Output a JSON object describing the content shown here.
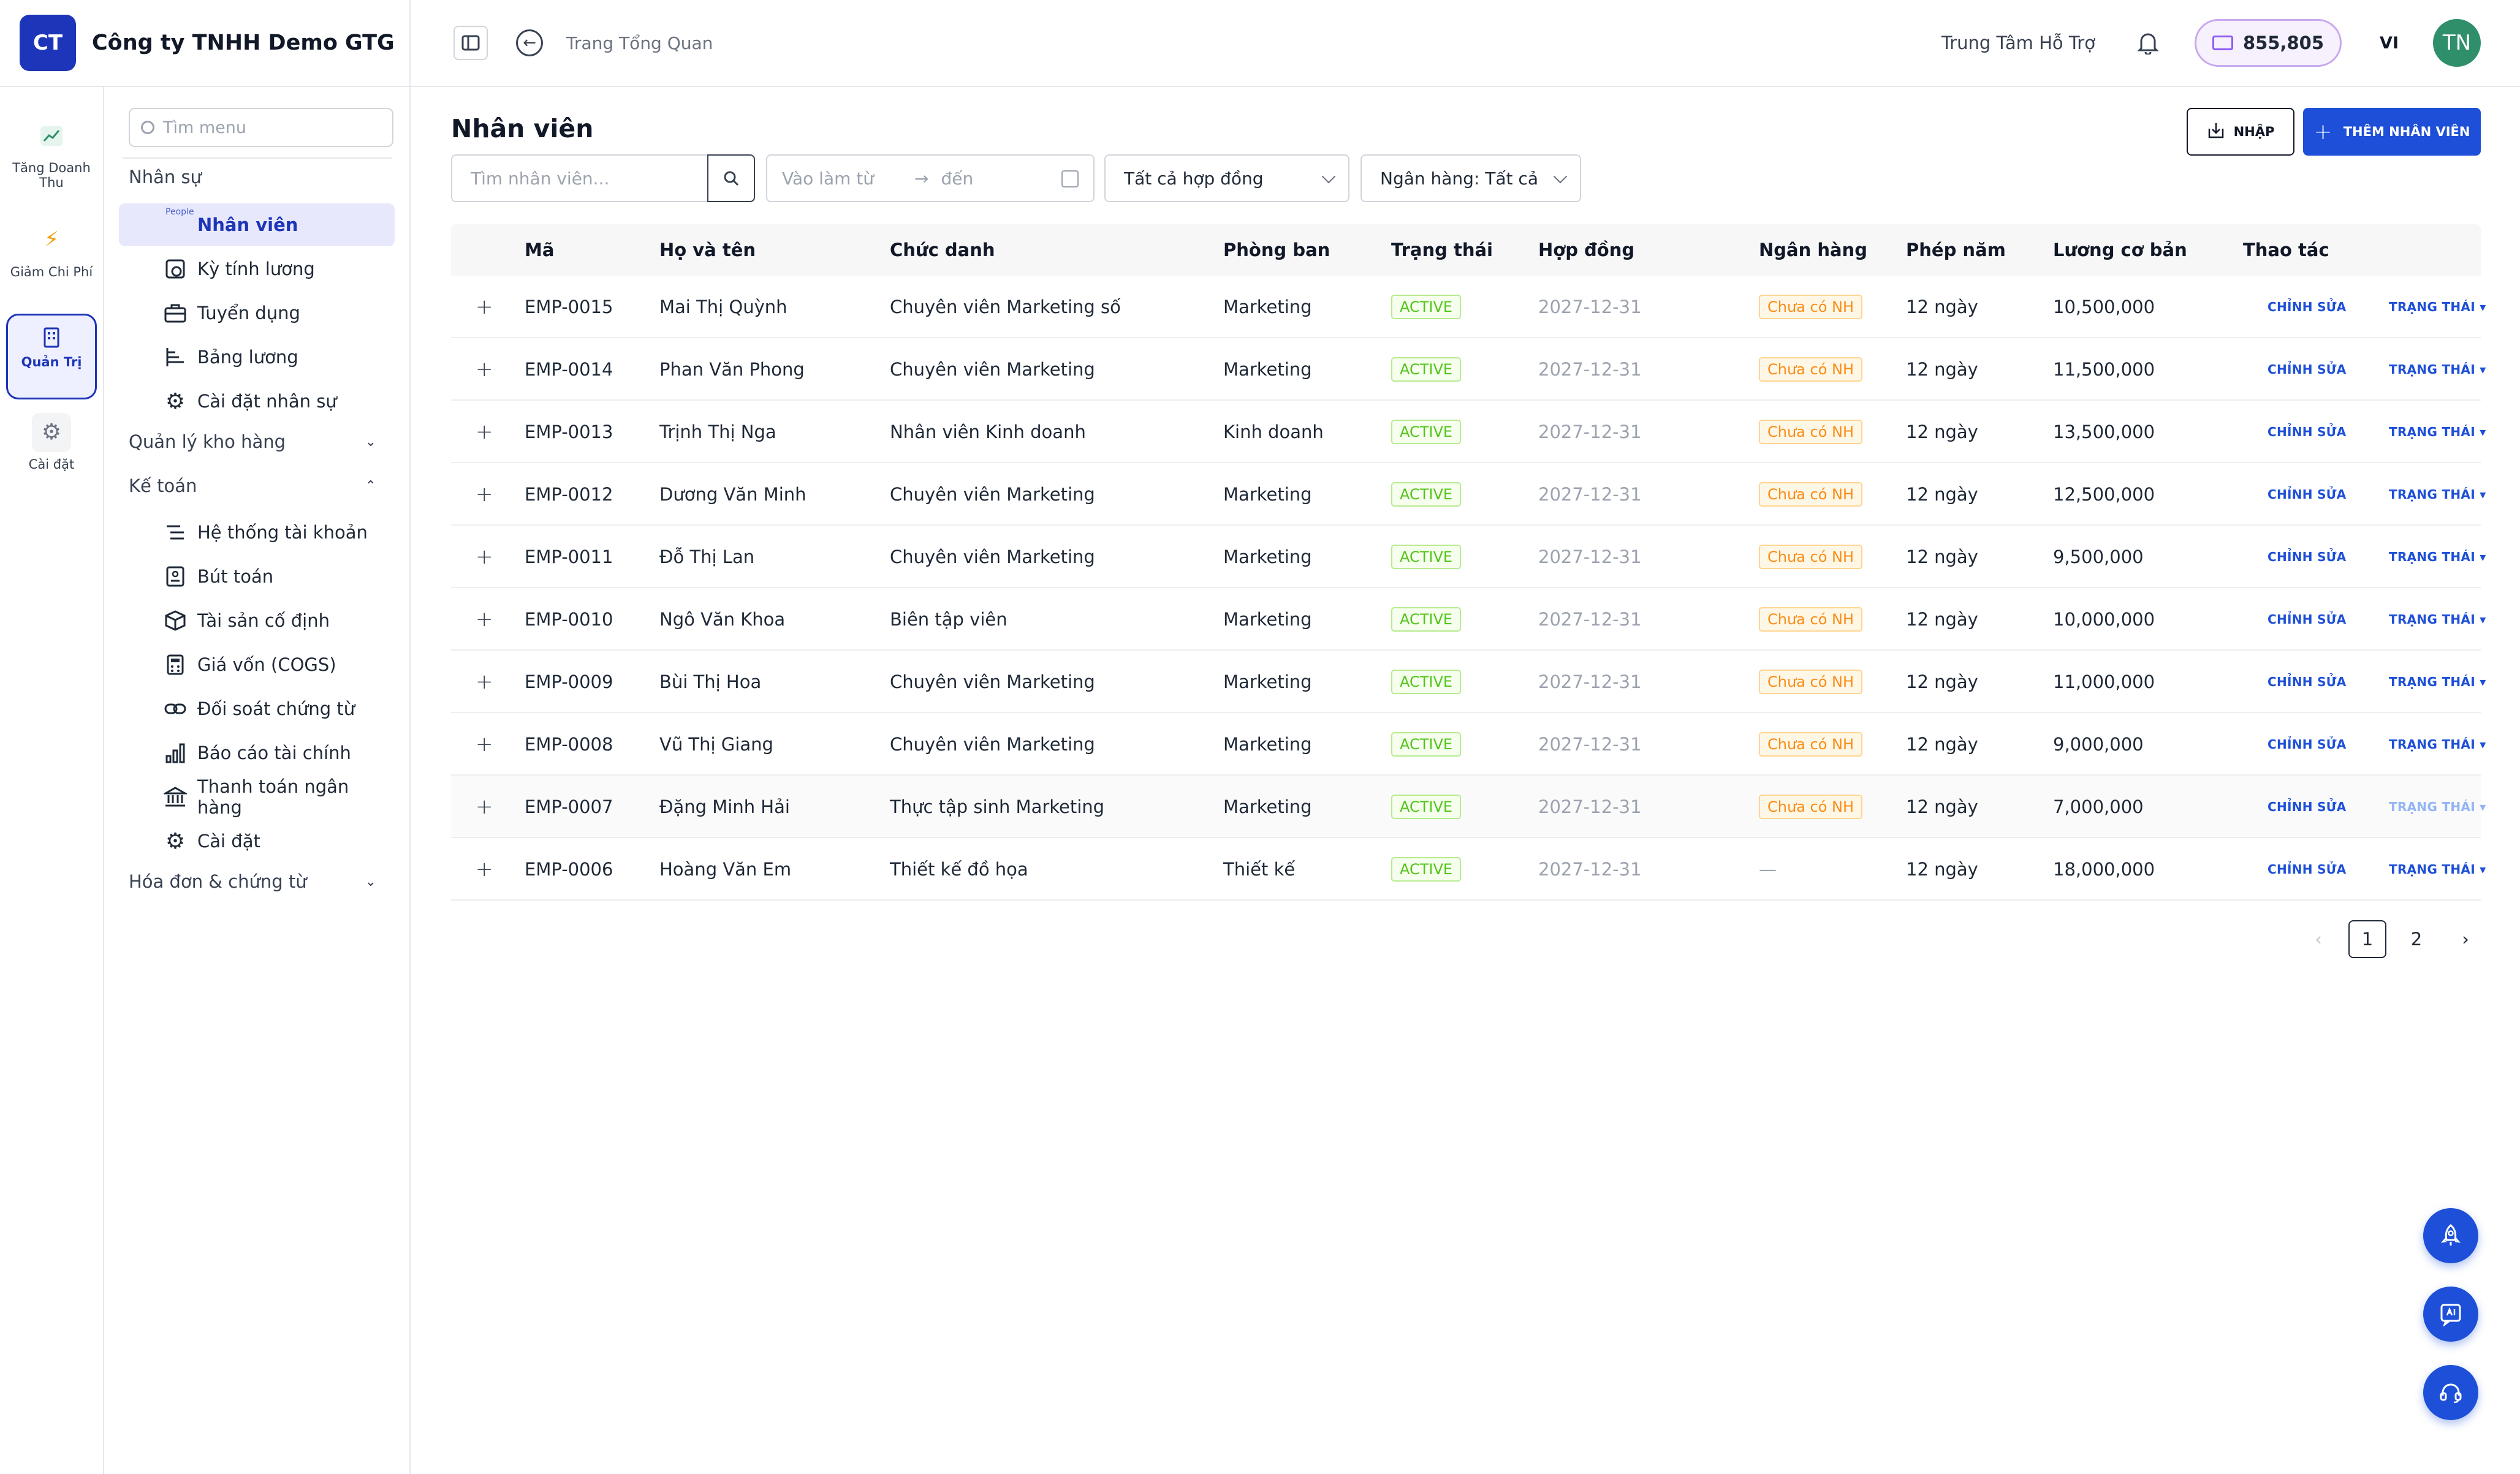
{
  "brand": {
    "logo_text": "CT",
    "company": "Công ty TNHH Demo GTG"
  },
  "topbar": {
    "breadcrumb": "Trang Tổng Quan",
    "support": "Trung Tâm Hỗ Trợ",
    "balance": "855,805",
    "lang": "VI",
    "avatar": "TN"
  },
  "rail": {
    "items": [
      {
        "label": "Tăng Doanh Thu",
        "icon": "chart-line-icon"
      },
      {
        "label": "Giảm Chi Phí",
        "icon": "bolt-icon"
      },
      {
        "label": "Quản Trị",
        "icon": "building-icon",
        "active": true
      },
      {
        "label": "Cài đặt",
        "icon": "gear-icon"
      }
    ]
  },
  "menu": {
    "search_placeholder": "Tìm menu",
    "groups": {
      "hr": "Nhân sự",
      "warehouse": "Quản lý kho hàng",
      "accounting": "Kế toán",
      "invoice": "Hóa đơn & chứng từ"
    },
    "hr_items": [
      {
        "label": "Nhân viên",
        "icon": "people-icon",
        "tiny": "People"
      },
      {
        "label": "Kỳ tính lương",
        "icon": "payroll-period-icon"
      },
      {
        "label": "Tuyển dụng",
        "icon": "briefcase-icon"
      },
      {
        "label": "Bảng lương",
        "icon": "salary-table-icon"
      },
      {
        "label": "Cài đặt nhân sự",
        "icon": "gear-icon"
      }
    ],
    "accounting_items": [
      {
        "label": "Hệ thống tài khoản",
        "icon": "list-icon"
      },
      {
        "label": "Bút toán",
        "icon": "journal-icon"
      },
      {
        "label": "Tài sản cố định",
        "icon": "box-icon"
      },
      {
        "label": "Giá vốn (COGS)",
        "icon": "calculator-icon"
      },
      {
        "label": "Đối soát chứng từ",
        "icon": "link-icon"
      },
      {
        "label": "Báo cáo tài chính",
        "icon": "bar-chart-icon"
      },
      {
        "label": "Thanh toán ngân hàng",
        "icon": "bank-icon"
      },
      {
        "label": "Cài đặt",
        "icon": "gear-icon"
      }
    ]
  },
  "page": {
    "title": "Nhân viên",
    "import_label": "NHẬP",
    "add_label": "THÊM NHÂN VIÊN"
  },
  "filters": {
    "search_placeholder": "Tìm nhân viên...",
    "date_from": "Vào làm từ",
    "date_arrow": "→",
    "date_to": "đến",
    "contract": "Tất cả hợp đồng",
    "bank": "Ngân hàng: Tất cả"
  },
  "table": {
    "columns": [
      "Mã",
      "Họ và tên",
      "Chức danh",
      "Phòng ban",
      "Trạng thái",
      "Hợp đồng",
      "Ngân hàng",
      "Phép năm",
      "Lương cơ bản",
      "Thao tác"
    ],
    "edit_label": "CHỈNH SỬA",
    "status_label": "TRẠNG THÁI ▾",
    "rows": [
      {
        "code": "EMP-0015",
        "name": "Mai Thị Quỳnh",
        "title": "Chuyên viên Marketing số",
        "dept": "Marketing",
        "status": "ACTIVE",
        "contract": "2027-12-31",
        "bank": "Chưa có NH",
        "leave": "12 ngày",
        "salary": "10,500,000"
      },
      {
        "code": "EMP-0014",
        "name": "Phan Văn Phong",
        "title": "Chuyên viên Marketing",
        "dept": "Marketing",
        "status": "ACTIVE",
        "contract": "2027-12-31",
        "bank": "Chưa có NH",
        "leave": "12 ngày",
        "salary": "11,500,000"
      },
      {
        "code": "EMP-0013",
        "name": "Trịnh Thị Nga",
        "title": "Nhân viên Kinh doanh",
        "dept": "Kinh doanh",
        "status": "ACTIVE",
        "contract": "2027-12-31",
        "bank": "Chưa có NH",
        "leave": "12 ngày",
        "salary": "13,500,000"
      },
      {
        "code": "EMP-0012",
        "name": "Dương Văn Minh",
        "title": "Chuyên viên Marketing",
        "dept": "Marketing",
        "status": "ACTIVE",
        "contract": "2027-12-31",
        "bank": "Chưa có NH",
        "leave": "12 ngày",
        "salary": "12,500,000"
      },
      {
        "code": "EMP-0011",
        "name": "Đỗ Thị Lan",
        "title": "Chuyên viên Marketing",
        "dept": "Marketing",
        "status": "ACTIVE",
        "contract": "2027-12-31",
        "bank": "Chưa có NH",
        "leave": "12 ngày",
        "salary": "9,500,000"
      },
      {
        "code": "EMP-0010",
        "name": "Ngô Văn Khoa",
        "title": "Biên tập viên",
        "dept": "Marketing",
        "status": "ACTIVE",
        "contract": "2027-12-31",
        "bank": "Chưa có NH",
        "leave": "12 ngày",
        "salary": "10,000,000"
      },
      {
        "code": "EMP-0009",
        "name": "Bùi Thị Hoa",
        "title": "Chuyên viên Marketing",
        "dept": "Marketing",
        "status": "ACTIVE",
        "contract": "2027-12-31",
        "bank": "Chưa có NH",
        "leave": "12 ngày",
        "salary": "11,000,000"
      },
      {
        "code": "EMP-0008",
        "name": "Vũ Thị Giang",
        "title": "Chuyên viên Marketing",
        "dept": "Marketing",
        "status": "ACTIVE",
        "contract": "2027-12-31",
        "bank": "Chưa có NH",
        "leave": "12 ngày",
        "salary": "9,000,000"
      },
      {
        "code": "EMP-0007",
        "name": "Đặng Minh Hải",
        "title": "Thực tập sinh Marketing",
        "dept": "Marketing",
        "status": "ACTIVE",
        "contract": "2027-12-31",
        "bank": "Chưa có NH",
        "leave": "12 ngày",
        "salary": "7,000,000"
      },
      {
        "code": "EMP-0006",
        "name": "Hoàng Văn Em",
        "title": "Thiết kế đồ họa",
        "dept": "Thiết kế",
        "status": "ACTIVE",
        "contract": "2027-12-31",
        "bank": "—",
        "leave": "12 ngày",
        "salary": "18,000,000"
      }
    ]
  },
  "pagination": {
    "prev": "‹",
    "pages": [
      "1",
      "2"
    ],
    "current": "1",
    "next": "›"
  },
  "colors": {
    "brand": "#1d35b8",
    "primary": "#1d4fd8",
    "active_tag": "#52c41a",
    "warning_tag": "#fa8c16"
  }
}
